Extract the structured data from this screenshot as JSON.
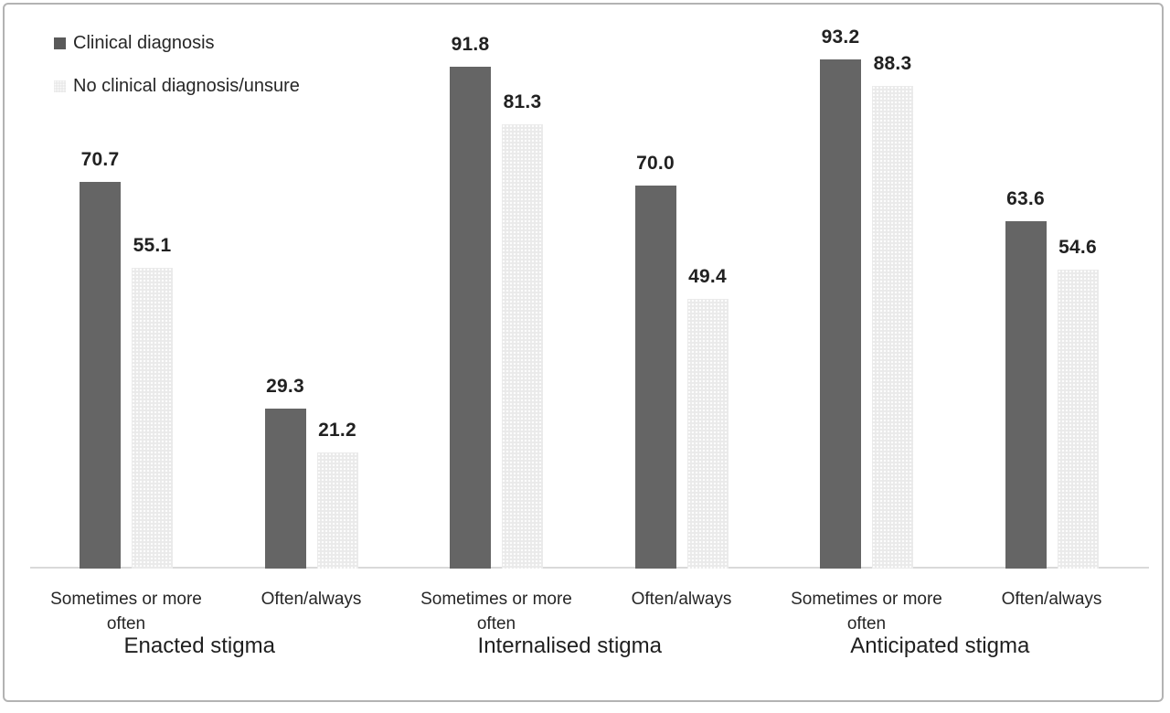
{
  "legend": {
    "items": [
      {
        "label": "Clinical diagnosis"
      },
      {
        "label": "No clinical diagnosis/unsure"
      }
    ]
  },
  "chart_data": {
    "type": "bar",
    "subtype": "grouped-vertical",
    "title": "",
    "xlabel": "",
    "ylabel": "",
    "ylim": [
      0,
      100
    ],
    "grid": false,
    "axis_line_color": "#d9d9d9",
    "legend_position": "top-left",
    "series_names": [
      "Clinical diagnosis",
      "No clinical diagnosis/unsure"
    ],
    "series_colors": [
      "#656565",
      "#eaeaea-dotted"
    ],
    "groups": [
      {
        "label": "Enacted stigma",
        "categories": [
          {
            "label_lines": [
              "Sometimes or more",
              "often"
            ],
            "values": [
              70.7,
              55.1
            ],
            "value_labels": [
              "70.7",
              "55.1"
            ]
          },
          {
            "label_lines": [
              "Often/always"
            ],
            "values": [
              29.3,
              21.2
            ],
            "value_labels": [
              "29.3",
              "21.2"
            ]
          }
        ]
      },
      {
        "label": "Internalised stigma",
        "categories": [
          {
            "label_lines": [
              "Sometimes or more",
              "often"
            ],
            "values": [
              91.8,
              81.3
            ],
            "value_labels": [
              "91.8",
              "81.3"
            ]
          },
          {
            "label_lines": [
              "Often/always"
            ],
            "values": [
              70.0,
              49.4
            ],
            "value_labels": [
              "70.0",
              "49.4"
            ]
          }
        ]
      },
      {
        "label": "Anticipated stigma",
        "categories": [
          {
            "label_lines": [
              "Sometimes or more",
              "often"
            ],
            "values": [
              93.2,
              88.3
            ],
            "value_labels": [
              "93.2",
              "88.3"
            ]
          },
          {
            "label_lines": [
              "Often/always"
            ],
            "values": [
              63.6,
              54.6
            ],
            "value_labels": [
              "63.6",
              "54.6"
            ]
          }
        ]
      }
    ]
  }
}
